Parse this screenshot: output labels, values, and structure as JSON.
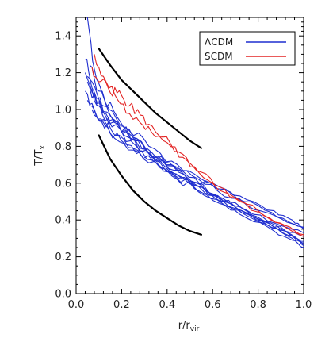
{
  "chart_data": {
    "type": "line",
    "xlabel": {
      "base": "r/r",
      "sub": "vir"
    },
    "ylabel": {
      "base": "T/T",
      "sub": "x"
    },
    "xlim": [
      0.0,
      1.0
    ],
    "ylim": [
      0.0,
      1.5
    ],
    "x_ticks": [
      "0.0",
      "0.2",
      "0.4",
      "0.6",
      "0.8",
      "1.0"
    ],
    "y_ticks": [
      "0.0",
      "0.2",
      "0.4",
      "0.6",
      "0.8",
      "1.0",
      "1.2",
      "1.4"
    ],
    "legend": {
      "position": "top-right",
      "entries": [
        {
          "label": "ΛCDM",
          "color": "#1f2ecf"
        },
        {
          "label": "SCDM",
          "color": "#e32424"
        }
      ]
    },
    "series": [
      {
        "color": "#1f2ecf",
        "points": [
          [
            0.05,
            1.5
          ],
          [
            0.08,
            1.22
          ],
          [
            0.12,
            1.07
          ],
          [
            0.18,
            0.96
          ],
          [
            0.25,
            0.85
          ],
          [
            0.33,
            0.77
          ],
          [
            0.42,
            0.7
          ],
          [
            0.52,
            0.63
          ],
          [
            0.62,
            0.56
          ],
          [
            0.75,
            0.48
          ],
          [
            0.88,
            0.42
          ],
          [
            1.0,
            0.36
          ]
        ]
      },
      {
        "color": "#1f2ecf",
        "points": [
          [
            0.04,
            1.27
          ],
          [
            0.07,
            1.15
          ],
          [
            0.12,
            1.02
          ],
          [
            0.18,
            0.93
          ],
          [
            0.26,
            0.83
          ],
          [
            0.35,
            0.74
          ],
          [
            0.45,
            0.66
          ],
          [
            0.55,
            0.58
          ],
          [
            0.66,
            0.5
          ],
          [
            0.78,
            0.43
          ],
          [
            0.9,
            0.37
          ],
          [
            1.0,
            0.33
          ]
        ]
      },
      {
        "color": "#1f2ecf",
        "points": [
          [
            0.04,
            1.2
          ],
          [
            0.08,
            1.08
          ],
          [
            0.13,
            0.98
          ],
          [
            0.2,
            0.88
          ],
          [
            0.28,
            0.79
          ],
          [
            0.37,
            0.71
          ],
          [
            0.47,
            0.63
          ],
          [
            0.58,
            0.55
          ],
          [
            0.7,
            0.47
          ],
          [
            0.82,
            0.4
          ],
          [
            0.92,
            0.34
          ],
          [
            1.0,
            0.31
          ]
        ]
      },
      {
        "color": "#1f2ecf",
        "points": [
          [
            0.05,
            1.15
          ],
          [
            0.09,
            1.03
          ],
          [
            0.14,
            0.95
          ],
          [
            0.21,
            0.86
          ],
          [
            0.3,
            0.77
          ],
          [
            0.4,
            0.69
          ],
          [
            0.5,
            0.61
          ],
          [
            0.61,
            0.53
          ],
          [
            0.73,
            0.45
          ],
          [
            0.85,
            0.38
          ],
          [
            0.94,
            0.32
          ],
          [
            1.0,
            0.29
          ]
        ]
      },
      {
        "color": "#1f2ecf",
        "points": [
          [
            0.04,
            1.1
          ],
          [
            0.08,
            1.0
          ],
          [
            0.14,
            0.9
          ],
          [
            0.22,
            0.81
          ],
          [
            0.31,
            0.73
          ],
          [
            0.41,
            0.66
          ],
          [
            0.51,
            0.59
          ],
          [
            0.62,
            0.51
          ],
          [
            0.74,
            0.43
          ],
          [
            0.86,
            0.36
          ],
          [
            0.95,
            0.3
          ],
          [
            1.0,
            0.27
          ]
        ]
      },
      {
        "color": "#1f2ecf",
        "points": [
          [
            0.05,
            1.05
          ],
          [
            0.09,
            0.96
          ],
          [
            0.15,
            0.87
          ],
          [
            0.23,
            0.78
          ],
          [
            0.32,
            0.71
          ],
          [
            0.42,
            0.64
          ],
          [
            0.52,
            0.57
          ],
          [
            0.63,
            0.49
          ],
          [
            0.75,
            0.41
          ],
          [
            0.87,
            0.34
          ],
          [
            0.95,
            0.29
          ],
          [
            1.0,
            0.25
          ]
        ]
      },
      {
        "color": "#1f2ecf",
        "points": [
          [
            0.06,
            1.12
          ],
          [
            0.1,
            1.02
          ],
          [
            0.16,
            0.93
          ],
          [
            0.24,
            0.83
          ],
          [
            0.33,
            0.75
          ],
          [
            0.43,
            0.67
          ],
          [
            0.53,
            0.6
          ],
          [
            0.64,
            0.52
          ],
          [
            0.76,
            0.44
          ],
          [
            0.88,
            0.37
          ],
          [
            0.96,
            0.31
          ],
          [
            1.0,
            0.28
          ]
        ]
      },
      {
        "color": "#1f2ecf",
        "points": [
          [
            0.05,
            1.18
          ],
          [
            0.09,
            1.06
          ],
          [
            0.15,
            0.97
          ],
          [
            0.22,
            0.88
          ],
          [
            0.31,
            0.78
          ],
          [
            0.41,
            0.71
          ],
          [
            0.51,
            0.64
          ],
          [
            0.62,
            0.57
          ],
          [
            0.74,
            0.5
          ],
          [
            0.86,
            0.44
          ],
          [
            0.95,
            0.38
          ],
          [
            1.0,
            0.35
          ]
        ]
      },
      {
        "color": "#1f2ecf",
        "points": [
          [
            0.07,
            1.0
          ],
          [
            0.11,
            0.94
          ],
          [
            0.17,
            0.86
          ],
          [
            0.25,
            0.79
          ],
          [
            0.34,
            0.72
          ],
          [
            0.44,
            0.65
          ],
          [
            0.54,
            0.58
          ],
          [
            0.65,
            0.5
          ],
          [
            0.77,
            0.42
          ],
          [
            0.89,
            0.35
          ],
          [
            0.97,
            0.29
          ],
          [
            1.0,
            0.26
          ]
        ]
      },
      {
        "color": "#1f2ecf",
        "points": [
          [
            0.06,
            1.24
          ],
          [
            0.1,
            1.1
          ],
          [
            0.16,
            0.99
          ],
          [
            0.23,
            0.89
          ],
          [
            0.32,
            0.8
          ],
          [
            0.42,
            0.72
          ],
          [
            0.52,
            0.65
          ],
          [
            0.63,
            0.58
          ],
          [
            0.75,
            0.51
          ],
          [
            0.87,
            0.45
          ],
          [
            0.95,
            0.4
          ],
          [
            1.0,
            0.36
          ]
        ]
      },
      {
        "color": "#e32424",
        "points": [
          [
            0.07,
            1.23
          ],
          [
            0.1,
            1.15
          ],
          [
            0.14,
            1.12
          ],
          [
            0.18,
            1.09
          ],
          [
            0.22,
            1.02
          ],
          [
            0.27,
            1.0
          ],
          [
            0.32,
            0.92
          ],
          [
            0.38,
            0.85
          ],
          [
            0.45,
            0.77
          ],
          [
            0.52,
            0.69
          ],
          [
            0.6,
            0.6
          ],
          [
            0.7,
            0.52
          ],
          [
            0.8,
            0.45
          ],
          [
            0.9,
            0.38
          ],
          [
            1.0,
            0.31
          ]
        ]
      },
      {
        "color": "#e32424",
        "points": [
          [
            0.08,
            1.3
          ],
          [
            0.12,
            1.18
          ],
          [
            0.17,
            1.08
          ],
          [
            0.22,
            0.98
          ],
          [
            0.28,
            0.93
          ],
          [
            0.33,
            0.88
          ],
          [
            0.4,
            0.82
          ],
          [
            0.47,
            0.74
          ],
          [
            0.55,
            0.66
          ],
          [
            0.63,
            0.58
          ],
          [
            0.72,
            0.5
          ],
          [
            0.82,
            0.43
          ],
          [
            0.92,
            0.37
          ],
          [
            1.0,
            0.32
          ]
        ]
      }
    ],
    "envelope": {
      "color": "#000000",
      "curves": [
        {
          "points": [
            [
              0.1,
              1.33
            ],
            [
              0.15,
              1.24
            ],
            [
              0.2,
              1.16
            ],
            [
              0.25,
              1.1
            ],
            [
              0.3,
              1.04
            ],
            [
              0.35,
              0.98
            ],
            [
              0.4,
              0.93
            ],
            [
              0.45,
              0.88
            ],
            [
              0.5,
              0.83
            ],
            [
              0.55,
              0.79
            ]
          ]
        },
        {
          "points": [
            [
              0.1,
              0.86
            ],
            [
              0.15,
              0.73
            ],
            [
              0.2,
              0.64
            ],
            [
              0.25,
              0.56
            ],
            [
              0.3,
              0.5
            ],
            [
              0.35,
              0.45
            ],
            [
              0.4,
              0.41
            ],
            [
              0.45,
              0.37
            ],
            [
              0.5,
              0.34
            ],
            [
              0.55,
              0.32
            ]
          ]
        }
      ]
    }
  }
}
